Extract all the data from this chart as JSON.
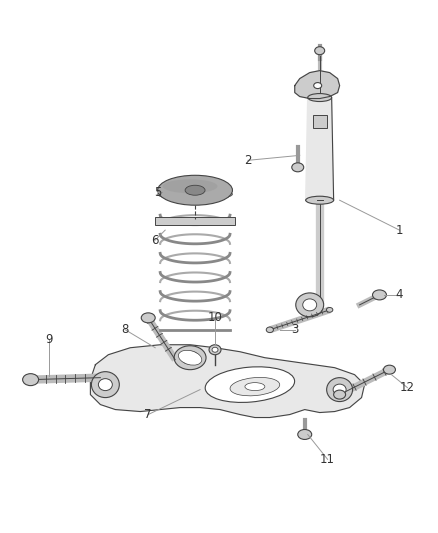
{
  "background_color": "#ffffff",
  "fig_width": 4.38,
  "fig_height": 5.33,
  "dpi": 100,
  "line_color": "#999999",
  "part_edge_color": "#444444",
  "part_fill_light": "#e8e8e8",
  "part_fill_mid": "#cccccc",
  "part_fill_dark": "#aaaaaa",
  "label_color": "#333333",
  "label_fontsize": 8.5
}
